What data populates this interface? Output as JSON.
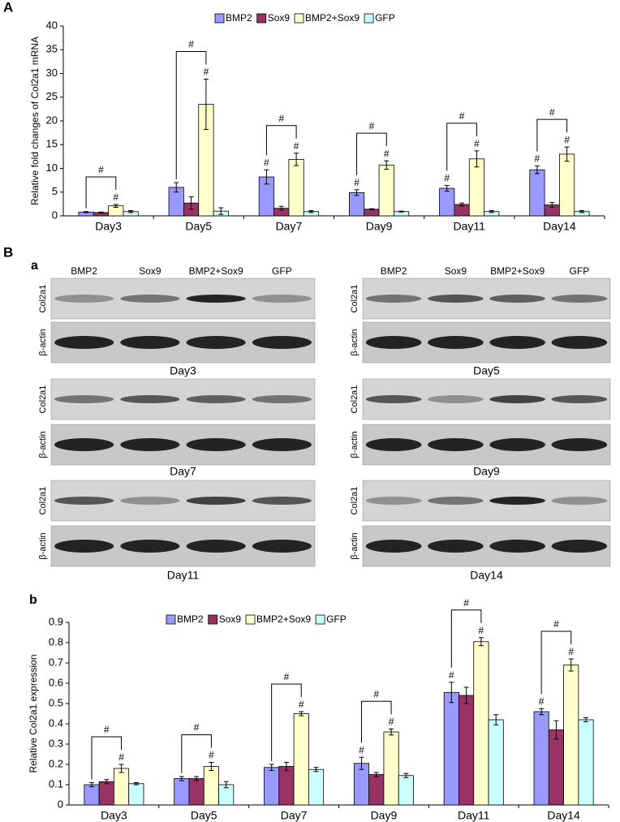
{
  "chart_data": [
    {
      "type": "bar",
      "panel_label": "A",
      "y_label": "Relative fold changes of Col2a1 mRNA",
      "categories": [
        "Day3",
        "Day5",
        "Day7",
        "Day9",
        "Day11",
        "Day14"
      ],
      "series": [
        {
          "name": "BMP2",
          "color": "#9999ff",
          "values": [
            0.8,
            6,
            8.2,
            4.9,
            5.8,
            9.7
          ],
          "errors": [
            0.1,
            1,
            1.5,
            0.6,
            0.6,
            0.8
          ],
          "markers": [
            null,
            null,
            "#",
            "#",
            "#",
            "#"
          ]
        },
        {
          "name": "Sox9",
          "color": "#993366",
          "values": [
            0.7,
            2.7,
            1.6,
            1.4,
            2.4,
            2.3
          ],
          "errors": [
            0.1,
            1.3,
            0.4,
            0.1,
            0.3,
            0.5
          ],
          "markers": [
            null,
            null,
            null,
            null,
            null,
            null
          ]
        },
        {
          "name": "BMP2+Sox9",
          "color": "#ffffcc",
          "values": [
            2.1,
            23.5,
            11.9,
            10.7,
            12,
            13
          ],
          "errors": [
            0.3,
            5.3,
            1.3,
            0.9,
            1.7,
            1.5
          ],
          "markers": [
            "#",
            "#",
            "#",
            "#",
            "#",
            "#"
          ]
        },
        {
          "name": "GFP",
          "color": "#ccffff",
          "values": [
            0.9,
            1,
            0.9,
            0.9,
            0.9,
            0.9
          ],
          "errors": [
            0.2,
            0.7,
            0.2,
            0.1,
            0.2,
            0.2
          ],
          "markers": [
            null,
            null,
            null,
            null,
            null,
            null
          ]
        }
      ],
      "brackets": [
        "#",
        "#",
        "#",
        "#",
        "#",
        "#"
      ],
      "ylim": [
        0,
        40
      ],
      "yticks": [
        0,
        5,
        10,
        15,
        20,
        25,
        30,
        35,
        40
      ],
      "legend": "top"
    },
    {
      "type": "bar",
      "panel_label": "b",
      "y_label": "Relative Col2a1 expression",
      "categories": [
        "Day3",
        "Day5",
        "Day7",
        "Day9",
        "Day11",
        "Day14"
      ],
      "series": [
        {
          "name": "BMP2",
          "color": "#9999ff",
          "values": [
            0.1,
            0.13,
            0.185,
            0.205,
            0.555,
            0.46
          ],
          "errors": [
            0.01,
            0.01,
            0.015,
            0.03,
            0.05,
            0.015
          ],
          "markers": [
            null,
            null,
            null,
            "#",
            "#",
            "#"
          ]
        },
        {
          "name": "Sox9",
          "color": "#993366",
          "values": [
            0.115,
            0.13,
            0.19,
            0.15,
            0.54,
            0.37
          ],
          "errors": [
            0.01,
            0.01,
            0.02,
            0.01,
            0.04,
            0.045
          ],
          "markers": [
            null,
            null,
            null,
            null,
            null,
            null
          ]
        },
        {
          "name": "BMP2+Sox9",
          "color": "#ffffcc",
          "values": [
            0.18,
            0.19,
            0.45,
            0.36,
            0.805,
            0.69
          ],
          "errors": [
            0.02,
            0.02,
            0.01,
            0.015,
            0.02,
            0.03
          ],
          "markers": [
            "#",
            "#",
            "#",
            "#",
            "#",
            "#"
          ]
        },
        {
          "name": "GFP",
          "color": "#ccffff",
          "values": [
            0.105,
            0.1,
            0.175,
            0.145,
            0.42,
            0.42
          ],
          "errors": [
            0.005,
            0.015,
            0.01,
            0.01,
            0.025,
            0.01
          ],
          "markers": [
            null,
            null,
            null,
            null,
            null,
            null
          ]
        }
      ],
      "brackets": [
        "#",
        "#",
        "#",
        "#",
        "#",
        "#"
      ],
      "ylim": [
        0,
        0.9
      ],
      "yticks": [
        0,
        0.1,
        0.2,
        0.3,
        0.4,
        0.5,
        0.6,
        0.7,
        0.8,
        0.9
      ],
      "legend": "top"
    }
  ],
  "blots": {
    "section_label": "B",
    "panel_label": "a",
    "columns": [
      {
        "lanes": [
          "BMP2",
          "Sox9",
          "BMP2+Sox9",
          "GFP"
        ],
        "panels": [
          {
            "day": "Day3",
            "rows": [
              "Col2a1",
              "β-actin"
            ]
          },
          {
            "day": "Day7",
            "rows": [
              "Col2a1",
              "β-actin"
            ]
          },
          {
            "day": "Day11",
            "rows": [
              "Col2a1",
              "β-actin"
            ]
          }
        ]
      },
      {
        "lanes": [
          "BMP2",
          "Sox9",
          "BMP2+Sox9",
          "GFP"
        ],
        "panels": [
          {
            "day": "Day5",
            "rows": [
              "Col2a1",
              "β-actin"
            ]
          },
          {
            "day": "Day9",
            "rows": [
              "Col2a1",
              "β-actin"
            ]
          },
          {
            "day": "Day14",
            "rows": [
              "Col2a1",
              "β-actin"
            ]
          }
        ]
      }
    ]
  }
}
